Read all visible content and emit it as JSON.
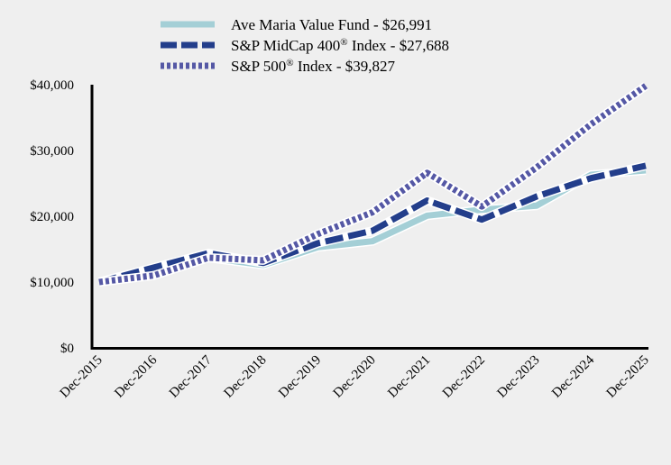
{
  "chart_data": {
    "type": "line",
    "title": "",
    "xlabel": "",
    "ylabel": "",
    "categories": [
      "Dec-2015",
      "Dec-2016",
      "Dec-2017",
      "Dec-2018",
      "Dec-2019",
      "Dec-2020",
      "Dec-2021",
      "Dec-2022",
      "Dec-2023",
      "Dec-2024",
      "Dec-2025"
    ],
    "ylim": [
      0,
      40000
    ],
    "yticks": [
      0,
      10000,
      20000,
      30000,
      40000
    ],
    "ytick_labels": [
      "$0",
      "$10,000",
      "$20,000",
      "$30,000",
      "$40,000"
    ],
    "grid": false,
    "legend_position": "top",
    "series": [
      {
        "name": "Ave Maria Value Fund - $26,991",
        "name_sup": "",
        "name_rest": "",
        "color": "#a4cfd6",
        "style": "solid",
        "values": [
          10000,
          11800,
          13700,
          12600,
          15300,
          16200,
          20100,
          21000,
          21600,
          26300,
          26991
        ]
      },
      {
        "name": "S&P MidCap 400",
        "name_sup": "®",
        "name_rest": " Index - $27,688",
        "color": "#233e8b",
        "style": "dashed",
        "values": [
          10000,
          12200,
          14400,
          12900,
          15900,
          17800,
          22400,
          19500,
          23000,
          25800,
          27688
        ]
      },
      {
        "name": "S&P 500",
        "name_sup": "®",
        "name_rest": " Index - $39,827",
        "color": "#5558a5",
        "style": "dotted",
        "values": [
          10000,
          11000,
          13700,
          13300,
          17300,
          20600,
          26600,
          21500,
          27400,
          34000,
          39827
        ]
      }
    ]
  }
}
